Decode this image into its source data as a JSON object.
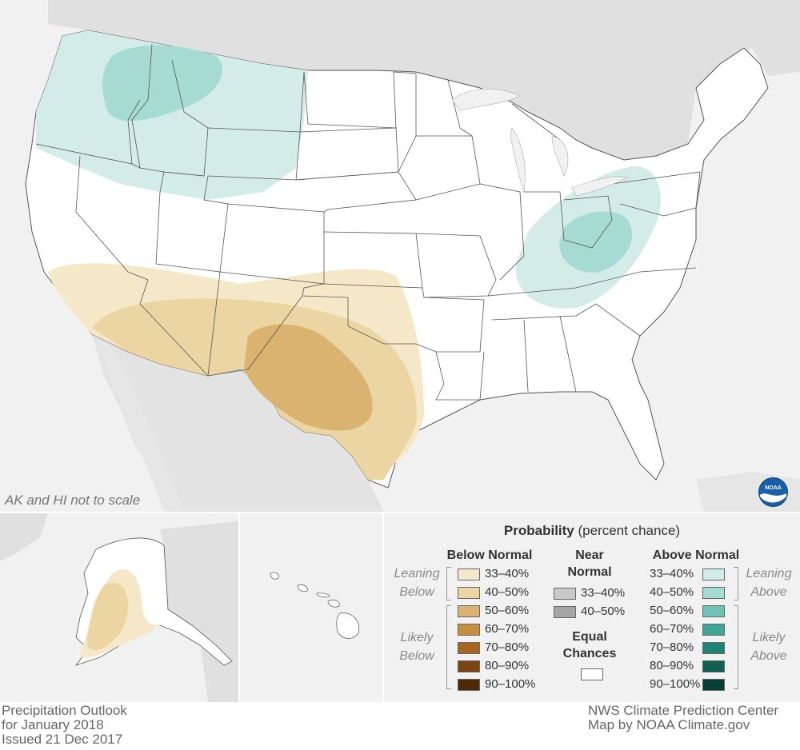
{
  "map_title": {
    "line1": "Precipitation Outlook",
    "line2": "for January 2018",
    "line3": "Issued 21 Dec 2017"
  },
  "credits": {
    "line1": "NWS Climate Prediction Center",
    "line2": "Map by NOAA Climate.gov"
  },
  "scale_note": "AK and HI not to scale",
  "logo_text": "NOAA",
  "legend": {
    "title_bold": "Probability",
    "title_rest": "(percent chance)",
    "below": {
      "header": "Below Normal",
      "leaning_label_1": "Leaning",
      "leaning_label_2": "Below",
      "likely_label_1": "Likely",
      "likely_label_2": "Below",
      "items": [
        {
          "label": "33–40%",
          "color": "#f5e8c8"
        },
        {
          "label": "40–50%",
          "color": "#ebd5a2"
        },
        {
          "label": "50–60%",
          "color": "#d9b36f"
        },
        {
          "label": "60–70%",
          "color": "#c68f3e"
        },
        {
          "label": "70–80%",
          "color": "#a5661f"
        },
        {
          "label": "80–90%",
          "color": "#7a4410"
        },
        {
          "label": "90–100%",
          "color": "#4d2a08"
        }
      ]
    },
    "near": {
      "header_1": "Near",
      "header_2": "Normal",
      "items": [
        {
          "label": "33–40%",
          "color": "#c9c9c9"
        },
        {
          "label": "40–50%",
          "color": "#a6a6a6"
        }
      ],
      "equal_1": "Equal",
      "equal_2": "Chances"
    },
    "above": {
      "header": "Above Normal",
      "leaning_label_1": "Leaning",
      "leaning_label_2": "Above",
      "likely_label_1": "Likely",
      "likely_label_2": "Above",
      "items": [
        {
          "label": "33–40%",
          "color": "#d4ece8"
        },
        {
          "label": "40–50%",
          "color": "#a6dbd3"
        },
        {
          "label": "50–60%",
          "color": "#6ec3b6"
        },
        {
          "label": "60–70%",
          "color": "#3fa597"
        },
        {
          "label": "70–80%",
          "color": "#1f8374"
        },
        {
          "label": "80–90%",
          "color": "#0f5f52"
        },
        {
          "label": "90–100%",
          "color": "#073f36"
        }
      ]
    }
  }
}
